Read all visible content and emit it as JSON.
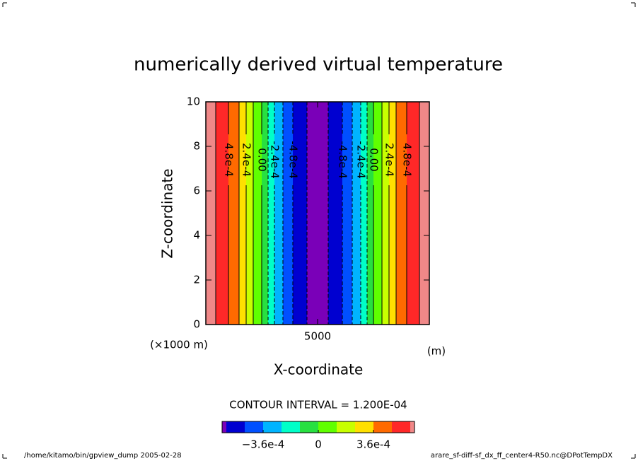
{
  "chart_data": {
    "type": "contour",
    "title": "numerically derived virtual temperature",
    "x_label": "X-coordinate",
    "x_units": "(m)",
    "y_label": "Z-coordinate",
    "y_units": "(×1000 m)",
    "xlim": [
      0,
      10000
    ],
    "xticks": [
      5000
    ],
    "ylim": [
      0,
      10
    ],
    "yticks": [
      0,
      2,
      4,
      6,
      8,
      10
    ],
    "contours": {
      "x": [
        443,
        1013,
        1487,
        1804,
        2120,
        2500,
        2785,
        3070,
        3449,
        3892,
        4525,
        5475,
        6108,
        6551,
        6930,
        7215,
        7500,
        7880,
        8196,
        8513,
        8987,
        9557
      ],
      "values": [
        0.0006,
        0.00048,
        0.00036,
        0.00024,
        0.00012,
        0,
        -0.00012,
        -0.00024,
        -0.00036,
        -0.00048,
        -0.0006,
        -0.0006,
        -0.00048,
        -0.00036,
        -0.00024,
        -0.00012,
        0,
        0.00012,
        0.00024,
        0.00036,
        0.00048,
        0.0006
      ],
      "value_labels": [
        null,
        "4.8e-4",
        null,
        "2.4e-4",
        null,
        "0.00",
        null,
        "-2.4e-4",
        null,
        "-4.8e-4",
        null,
        null,
        "-4.8e-4",
        null,
        "-2.4e-4",
        null,
        "0.00",
        null,
        "2.4e-4",
        null,
        "4.8e-4",
        null
      ]
    },
    "contour_interval_label": "CONTOUR INTERVAL = 1.200E-04",
    "colorbar": {
      "levels": [
        -0.0006,
        -0.00048,
        -0.00036,
        -0.00024,
        -0.00012,
        0,
        0.00012,
        0.00024,
        0.00036,
        0.00048,
        0.0006
      ],
      "colors": [
        "#7a00b8",
        "#0000d0",
        "#0050ff",
        "#00b4ff",
        "#00ffc8",
        "#28e040",
        "#60ff00",
        "#c8ff00",
        "#ffe000",
        "#ff6a00",
        "#ff2828",
        "#f08888"
      ],
      "ticks": [
        {
          "value": -0.00036,
          "label": "−3.6e-4"
        },
        0,
        {
          "value": 0.00036,
          "label": "3.6e-4"
        }
      ]
    },
    "footer_left": "/home/kitamo/bin/gpview_dump  2005-02-28",
    "footer_right": "arare_sf-diff-sf_dx_ff_center4-R50.nc@DPotTempDX"
  }
}
